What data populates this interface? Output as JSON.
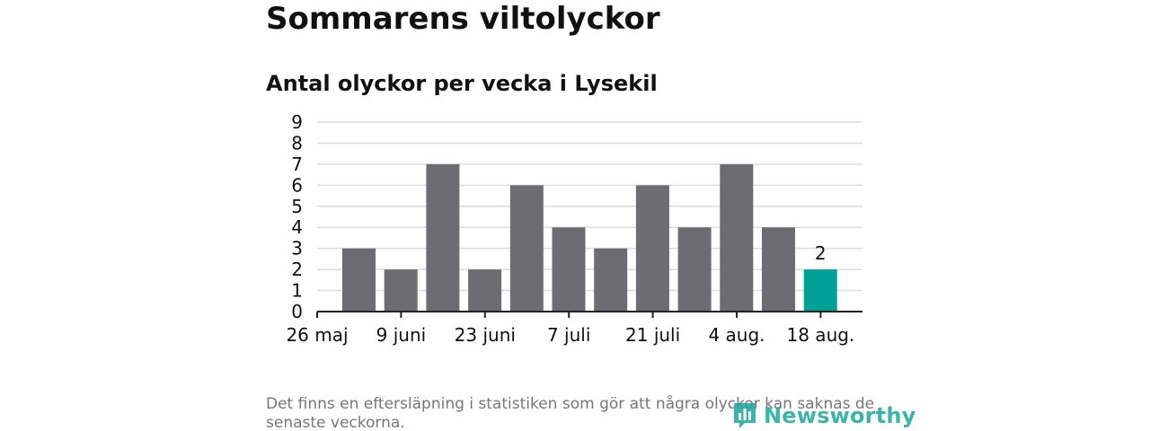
{
  "header": {
    "title": "Sommarens viltolyckor",
    "subtitle": "Antal olyckor per vecka i Lysekil"
  },
  "footer": {
    "note": "Det finns en eftersläpning i statistiken som gör att några olyckor kan saknas de senaste veckorna.",
    "logo_text": "Newsworthy"
  },
  "colors": {
    "bar": "#6d6c72",
    "highlight": "#00a097",
    "grid": "#dddddd",
    "axis": "#222222",
    "logo": "#19a99b"
  },
  "chart_data": {
    "type": "bar",
    "title": "Antal olyckor per vecka i Lysekil",
    "xlabel": "",
    "ylabel": "",
    "ylim": [
      0,
      9
    ],
    "yticks": [
      0,
      1,
      2,
      3,
      4,
      5,
      6,
      7,
      8,
      9
    ],
    "x_tick_labels": [
      "26 maj",
      "9 juni",
      "23 juni",
      "7 juli",
      "21 juli",
      "4 aug.",
      "18 aug."
    ],
    "values": [
      3,
      2,
      7,
      2,
      6,
      4,
      3,
      6,
      4,
      7,
      4,
      2
    ],
    "highlight_index": 11,
    "data_labels": [
      {
        "index": 11,
        "text": "2"
      }
    ],
    "grid": true
  }
}
